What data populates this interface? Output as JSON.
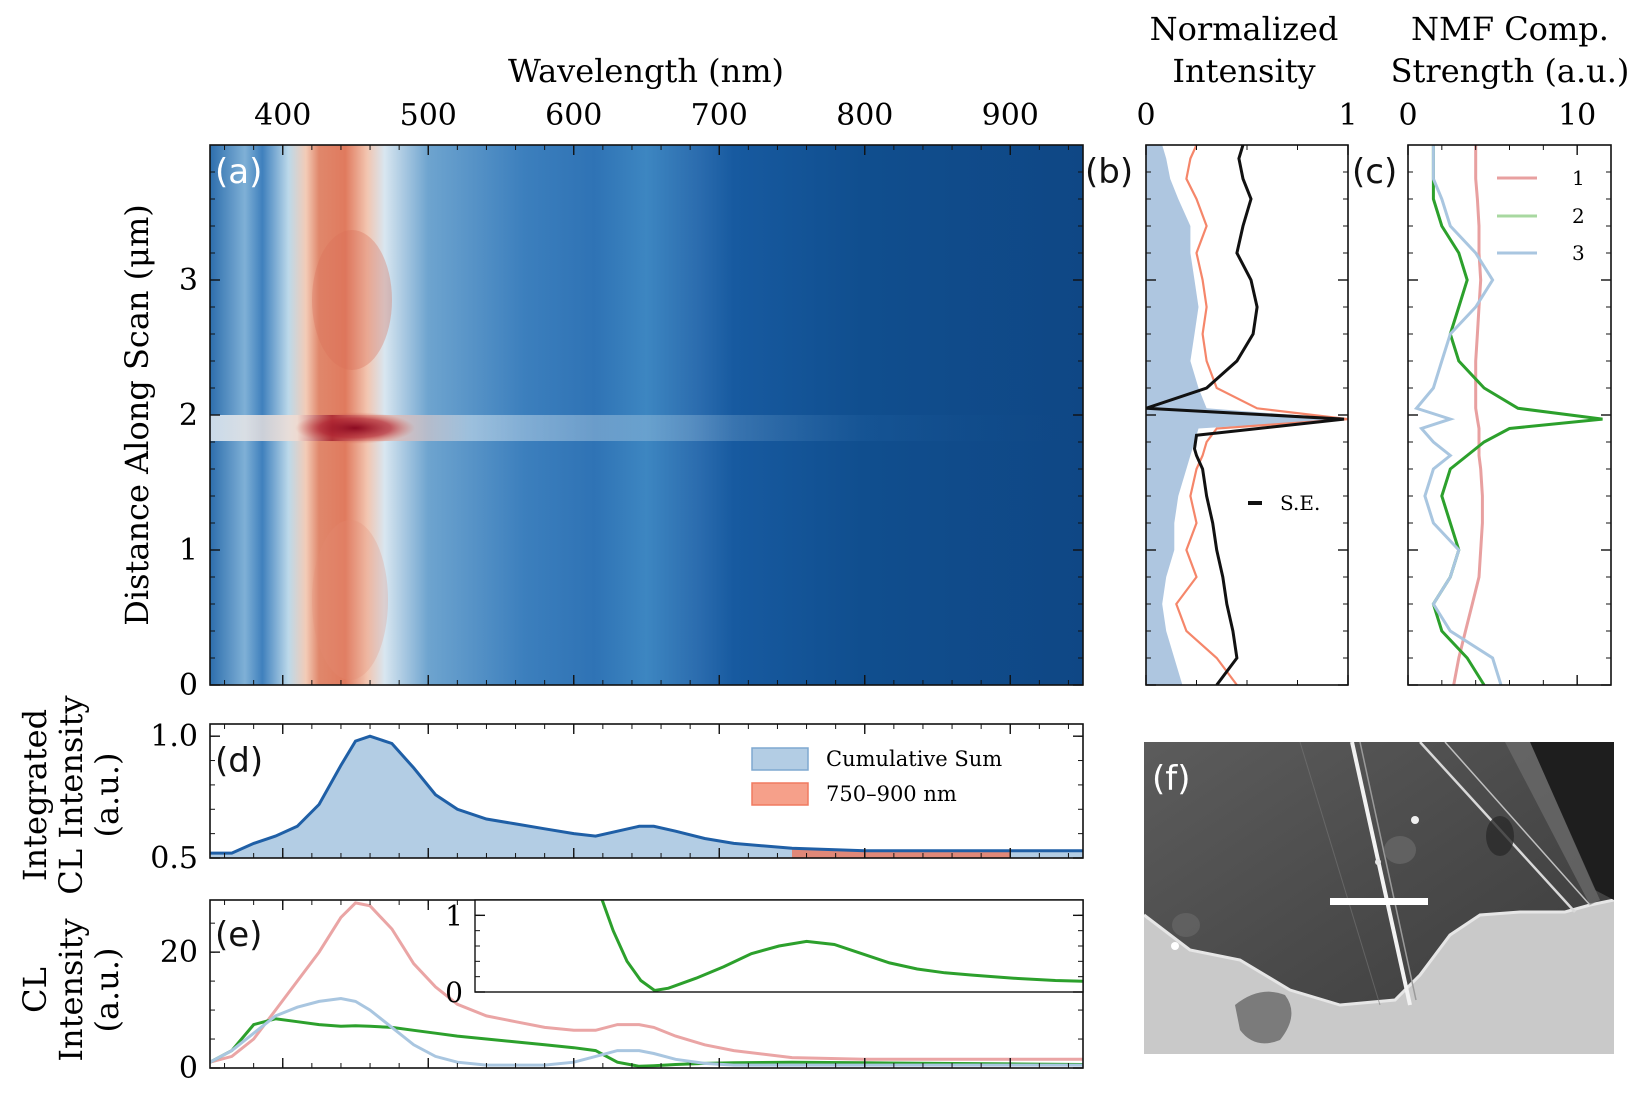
{
  "chart_data": [
    {
      "panel": "(a)",
      "type": "heatmap",
      "xlabel": "Wavelength (nm)",
      "ylabel": "Distance Along Scan (μm)",
      "xlim": [
        350,
        950
      ],
      "ylim": [
        0,
        4.0
      ],
      "xticks": [
        400,
        500,
        600,
        700,
        800,
        900
      ],
      "yticks": [
        0,
        1,
        2,
        3
      ],
      "colormap": "RdBu_r",
      "bright_bands_nm": [
        {
          "center": 450,
          "halfwidth": 25
        },
        {
          "center": 648,
          "halfwidth": 20
        }
      ],
      "hot_row_um": 1.93
    },
    {
      "panel": "(b)",
      "type": "line",
      "xlabel_top": "Normalized\nIntensity",
      "xlim": [
        0,
        1
      ],
      "xticks": [
        0,
        1
      ],
      "ylim": [
        0,
        4.0
      ],
      "series": [
        {
          "name": "Cumulative Sum fill",
          "color": "#aec6e0",
          "x": [
            0.18,
            0.14,
            0.1,
            0.08,
            0.1,
            0.14,
            0.14,
            0.16,
            0.2,
            0.22,
            0.24,
            0.26,
            1.0,
            0.3,
            0.26,
            0.22,
            0.24,
            0.26,
            0.24,
            0.22,
            0.22,
            0.16,
            0.12,
            0.1,
            0.08
          ],
          "y": [
            0,
            0.2,
            0.4,
            0.6,
            0.8,
            1.0,
            1.2,
            1.4,
            1.6,
            1.7,
            1.8,
            1.9,
            1.97,
            2.05,
            2.2,
            2.4,
            2.6,
            2.8,
            3.0,
            3.2,
            3.4,
            3.6,
            3.75,
            3.9,
            4.0
          ]
        },
        {
          "name": "750–900 nm",
          "color": "#f4795a",
          "x": [
            0.45,
            0.35,
            0.2,
            0.15,
            0.25,
            0.2,
            0.25,
            0.22,
            0.25,
            0.28,
            0.3,
            0.35,
            1.0,
            0.55,
            0.35,
            0.3,
            0.28,
            0.3,
            0.28,
            0.25,
            0.3,
            0.25,
            0.2,
            0.22,
            0.25
          ],
          "y": [
            0,
            0.2,
            0.4,
            0.6,
            0.8,
            1.0,
            1.2,
            1.4,
            1.6,
            1.7,
            1.8,
            1.9,
            1.97,
            2.05,
            2.2,
            2.4,
            2.6,
            2.8,
            3.0,
            3.2,
            3.4,
            3.6,
            3.75,
            3.9,
            4.0
          ]
        },
        {
          "name": "S.E.",
          "color": "#111111",
          "x": [
            0.35,
            0.45,
            0.43,
            0.4,
            0.38,
            0.35,
            0.33,
            0.3,
            0.28,
            0.25,
            0.24,
            0.25,
            0.98,
            0.0,
            0.3,
            0.45,
            0.53,
            0.55,
            0.52,
            0.45,
            0.48,
            0.52,
            0.48,
            0.46,
            0.48
          ],
          "y": [
            0,
            0.2,
            0.4,
            0.6,
            0.8,
            1.0,
            1.2,
            1.4,
            1.6,
            1.7,
            1.75,
            1.85,
            1.97,
            2.05,
            2.2,
            2.4,
            2.6,
            2.8,
            3.0,
            3.2,
            3.4,
            3.6,
            3.75,
            3.9,
            4.0
          ]
        }
      ],
      "legend": [
        "S.E."
      ]
    },
    {
      "panel": "(c)",
      "type": "line",
      "xlabel_top": "NMF Comp.\nStrength (a.u.)",
      "xlim": [
        0,
        12
      ],
      "xticks": [
        0,
        10
      ],
      "ylim": [
        0,
        4.0
      ],
      "series": [
        {
          "name": "1",
          "color": "#e8a0a0",
          "x": [
            2.7,
            3.0,
            3.4,
            3.8,
            4.2,
            4.3,
            4.4,
            4.4,
            4.3,
            4.2,
            4.2,
            4.2,
            4.1,
            4.0,
            4.0,
            4.0,
            4.1,
            4.2,
            4.3,
            4.2,
            4.2,
            4.1,
            4.0,
            4.0,
            4.0
          ],
          "y": [
            0,
            0.2,
            0.4,
            0.6,
            0.8,
            1.0,
            1.2,
            1.4,
            1.6,
            1.7,
            1.8,
            1.9,
            1.97,
            2.05,
            2.2,
            2.4,
            2.6,
            2.8,
            3.0,
            3.2,
            3.4,
            3.6,
            3.75,
            3.9,
            4.0
          ]
        },
        {
          "name": "2",
          "color": "#2ca02c",
          "x": [
            4.5,
            3.5,
            2.0,
            1.5,
            2.5,
            3.0,
            2.5,
            2.0,
            2.5,
            3.5,
            4.5,
            6.0,
            11.5,
            6.5,
            4.5,
            3.0,
            2.5,
            3.0,
            3.5,
            3.0,
            2.0,
            1.5,
            1.5,
            1.5,
            1.5
          ],
          "y": [
            0,
            0.2,
            0.4,
            0.6,
            0.8,
            1.0,
            1.2,
            1.4,
            1.6,
            1.7,
            1.8,
            1.9,
            1.97,
            2.05,
            2.2,
            2.4,
            2.6,
            2.8,
            3.0,
            3.2,
            3.4,
            3.6,
            3.75,
            3.9,
            4.0
          ]
        },
        {
          "name": "3",
          "color": "#a9c6e0",
          "x": [
            5.5,
            5.0,
            2.5,
            1.5,
            2.5,
            3.0,
            1.5,
            1.0,
            1.5,
            2.5,
            1.5,
            0.8,
            2.5,
            0.5,
            1.5,
            2.0,
            2.5,
            4.0,
            5.0,
            4.0,
            2.5,
            2.0,
            1.5,
            1.5,
            1.5
          ],
          "y": [
            0,
            0.2,
            0.4,
            0.6,
            0.8,
            1.0,
            1.2,
            1.4,
            1.6,
            1.7,
            1.8,
            1.9,
            1.97,
            2.05,
            2.2,
            2.4,
            2.6,
            2.8,
            3.0,
            3.2,
            3.4,
            3.6,
            3.75,
            3.9,
            4.0
          ]
        }
      ],
      "legend": [
        "1",
        "2",
        "3"
      ],
      "legend_position": "top-right"
    },
    {
      "panel": "(d)",
      "type": "area",
      "ylabel": "Integrated\nCL Intensity\n(a.u.)",
      "xlim": [
        350,
        950
      ],
      "ylim": [
        0.5,
        1.05
      ],
      "yticks": [
        0.5,
        1.0
      ],
      "ytick_labels": [
        "0.5",
        "1.0"
      ],
      "x": [
        350,
        365,
        380,
        395,
        410,
        425,
        440,
        450,
        460,
        475,
        490,
        505,
        520,
        540,
        560,
        580,
        600,
        615,
        630,
        645,
        655,
        670,
        690,
        710,
        750,
        800,
        850,
        900,
        950
      ],
      "series": [
        {
          "name": "Cumulative Sum",
          "color": "#1f5fa6",
          "fill": "#b3cde4",
          "values": [
            0.52,
            0.52,
            0.56,
            0.59,
            0.63,
            0.72,
            0.88,
            0.98,
            1.0,
            0.97,
            0.87,
            0.76,
            0.7,
            0.66,
            0.64,
            0.62,
            0.6,
            0.59,
            0.61,
            0.63,
            0.63,
            0.61,
            0.58,
            0.56,
            0.54,
            0.53,
            0.53,
            0.53,
            0.53
          ]
        },
        {
          "name": "750–900 nm",
          "color": "#d9806f",
          "fill": "#e08878",
          "range_nm": [
            750,
            900
          ]
        }
      ],
      "legend": [
        "Cumulative Sum",
        "750–900 nm"
      ],
      "legend_position": "top-right"
    },
    {
      "panel": "(e)",
      "type": "line",
      "ylabel": "CL\nIntensity\n(a.u.)",
      "xlim": [
        350,
        950
      ],
      "ylim": [
        0,
        29
      ],
      "yticks": [
        0,
        20
      ],
      "x": [
        350,
        365,
        380,
        395,
        410,
        425,
        440,
        450,
        460,
        475,
        490,
        505,
        520,
        540,
        560,
        580,
        600,
        615,
        630,
        645,
        655,
        670,
        690,
        710,
        750,
        800,
        850,
        900,
        950
      ],
      "series": [
        {
          "name": "1",
          "color": "#eaa5a5",
          "values": [
            1,
            2,
            5,
            10,
            15,
            20,
            26,
            28.5,
            28,
            24,
            18,
            14,
            11,
            9,
            8,
            7,
            6.5,
            6.5,
            7.5,
            7.5,
            7,
            5.5,
            4,
            3,
            1.8,
            1.5,
            1.5,
            1.5,
            1.5
          ]
        },
        {
          "name": "2",
          "color": "#2ca02c",
          "values": [
            1,
            3,
            7.5,
            8.5,
            8,
            7.5,
            7.2,
            7.3,
            7.2,
            7,
            6.5,
            6,
            5.5,
            5,
            4.5,
            4,
            3.5,
            3,
            1,
            0.3,
            0.4,
            0.6,
            0.8,
            0.9,
            1,
            0.9,
            0.8,
            0.7,
            0.6
          ]
        },
        {
          "name": "3",
          "color": "#a9c6e0",
          "values": [
            1,
            3,
            6,
            9,
            10.5,
            11.5,
            12,
            11.5,
            10,
            7,
            4,
            2,
            1,
            0.5,
            0.5,
            0.5,
            1,
            2,
            3,
            3,
            2.5,
            1.5,
            0.8,
            0.5,
            0.5,
            0.5,
            0.5,
            0.5,
            0.5
          ]
        }
      ],
      "inset": {
        "xlim": [
          510,
          950
        ],
        "ylim": [
          0,
          1.2
        ],
        "yticks": [
          0,
          1
        ],
        "series_name": "2",
        "x": [
          600,
          610,
          620,
          630,
          640,
          650,
          670,
          690,
          710,
          730,
          750,
          770,
          790,
          810,
          830,
          850,
          870,
          900,
          930,
          950
        ],
        "values": [
          1.3,
          0.8,
          0.4,
          0.15,
          0.02,
          0.05,
          0.18,
          0.33,
          0.5,
          0.6,
          0.66,
          0.62,
          0.5,
          0.38,
          0.3,
          0.25,
          0.22,
          0.18,
          0.15,
          0.14
        ]
      }
    },
    {
      "panel": "(f)",
      "type": "image",
      "description": ""
    }
  ],
  "panel_labels": [
    "(a)",
    "(b)",
    "(c)",
    "(d)",
    "(e)",
    "(f)"
  ]
}
